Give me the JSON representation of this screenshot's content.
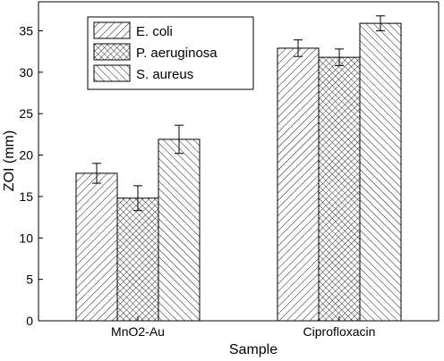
{
  "chart_data": {
    "type": "bar",
    "categories": [
      "MnO2-Au",
      "Ciprofloxacin"
    ],
    "series": [
      {
        "name": "E. coli",
        "values": [
          17.8,
          32.9
        ],
        "errors": [
          1.2,
          1.0
        ],
        "pattern": "diagonal"
      },
      {
        "name": "P. aeruginosa",
        "values": [
          14.8,
          31.8
        ],
        "errors": [
          1.5,
          1.0
        ],
        "pattern": "crosshatch"
      },
      {
        "name": "S. aureus",
        "values": [
          21.9,
          35.9
        ],
        "errors": [
          1.7,
          0.9
        ],
        "pattern": "backdiagonal"
      }
    ],
    "xlabel": "Sample",
    "ylabel": "ZOI (mm)",
    "ylim": [
      0,
      38.5
    ],
    "yticks": [
      0,
      5,
      10,
      15,
      20,
      25,
      30,
      35
    ],
    "grid": false,
    "legend_position": "top-left",
    "bar_color": "#000000"
  }
}
